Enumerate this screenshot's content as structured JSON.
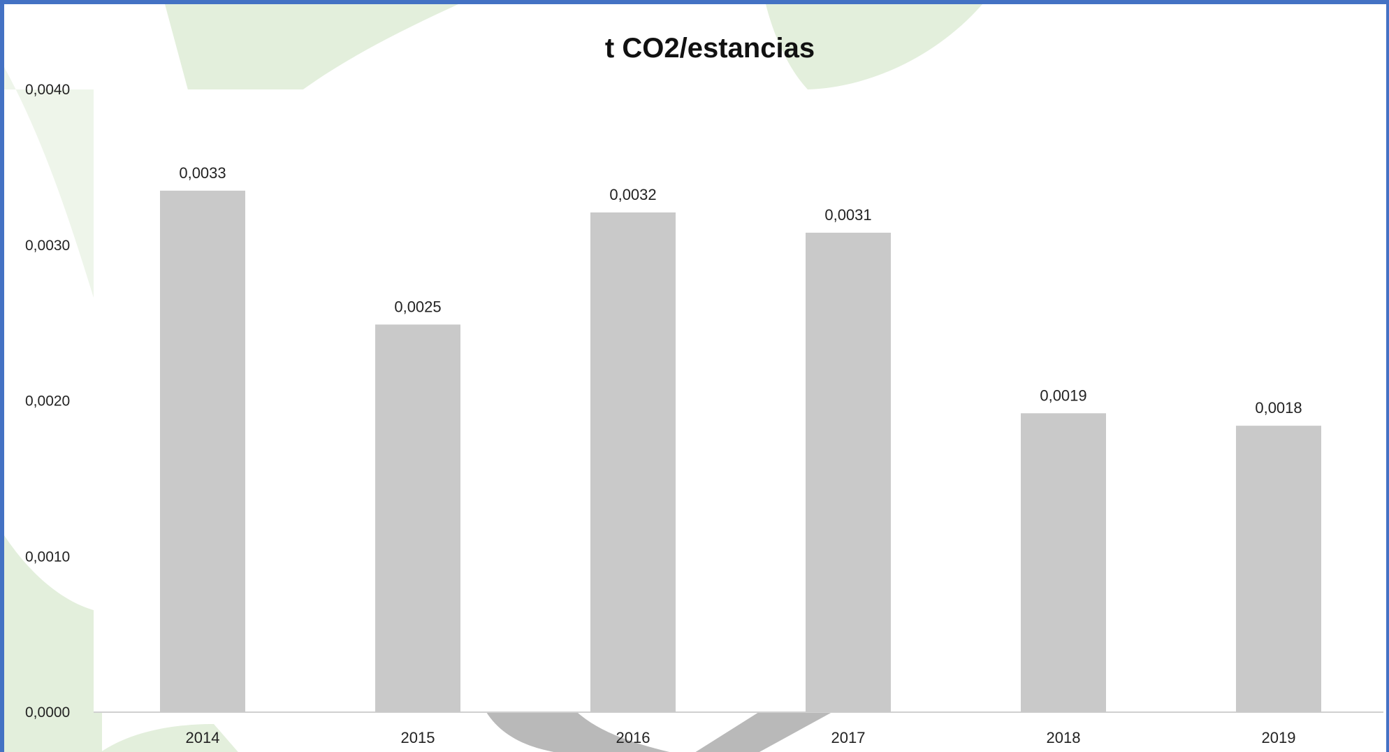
{
  "chart_data": {
    "type": "bar",
    "title": "t CO2/estancias",
    "xlabel": "",
    "ylabel": "",
    "categories": [
      "2014",
      "2015",
      "2016",
      "2017",
      "2018",
      "2019"
    ],
    "values": [
      0.00335,
      0.00249,
      0.00321,
      0.00308,
      0.00192,
      0.00184
    ],
    "data_labels": [
      "0,0033",
      "0,0025",
      "0,0032",
      "0,0031",
      "0,0019",
      "0,0018"
    ],
    "ylim": [
      0,
      0.004
    ],
    "yticks": [
      0,
      0.001,
      0.002,
      0.003,
      0.004
    ],
    "ytick_labels": [
      "0,0000",
      "0,0010",
      "0,0020",
      "0,0030",
      "0,0040"
    ],
    "grid": false,
    "legend": "none",
    "bar_color": "#c9c9c9",
    "axis_color": "#d0d0d0",
    "frame_color": "#4472c4",
    "watermark_color": "#e3efdc"
  }
}
